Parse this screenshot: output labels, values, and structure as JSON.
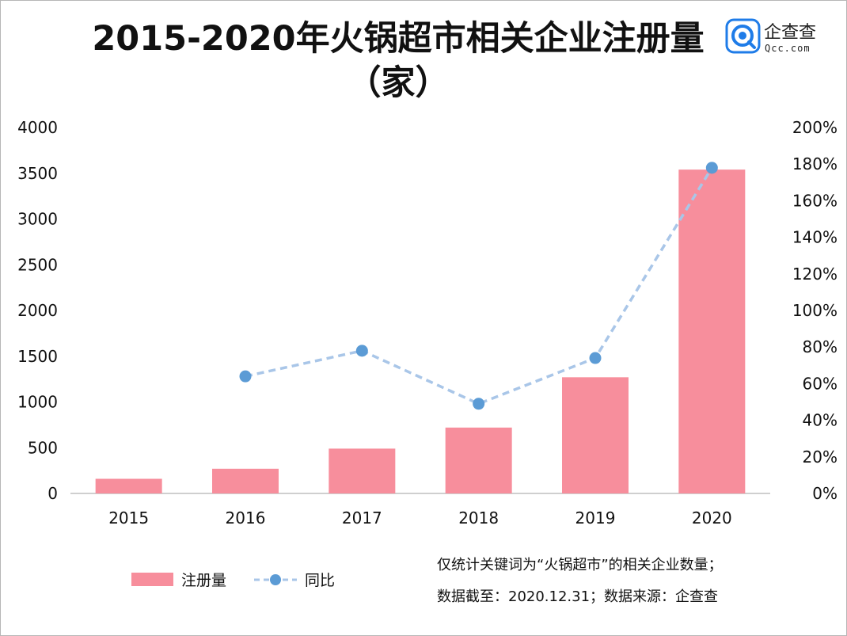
{
  "chart_data": {
    "type": "bar",
    "title": "2015-2020年火锅超市相关企业注册量",
    "title_line2": "（家）",
    "categories": [
      "2015",
      "2016",
      "2017",
      "2018",
      "2019",
      "2020"
    ],
    "series": [
      {
        "name": "注册量",
        "kind": "bar",
        "axis": "left",
        "color": "#f78e9c",
        "values": [
          160,
          270,
          490,
          720,
          1270,
          3540
        ]
      },
      {
        "name": "同比",
        "kind": "line",
        "axis": "right",
        "color": "#5b9bd5",
        "line_color": "#a9c6e8",
        "dashed": true,
        "values": [
          null,
          0.64,
          0.78,
          0.49,
          0.74,
          1.78
        ]
      }
    ],
    "y_left": {
      "min": 0,
      "max": 4000,
      "ticks": [
        "0",
        "500",
        "1000",
        "1500",
        "2000",
        "2500",
        "3000",
        "3500",
        "4000"
      ]
    },
    "y_right": {
      "min": 0,
      "max": 2,
      "ticks": [
        "0%",
        "20%",
        "40%",
        "60%",
        "80%",
        "100%",
        "120%",
        "140%",
        "160%",
        "180%",
        "200%"
      ]
    },
    "legend": {
      "placement": "bottom-left",
      "items": [
        "注册量",
        "同比"
      ]
    },
    "notes": [
      "仅统计关键词为“火锅超市”的相关企业数量；",
      "数据截至：2020.12.31；数据来源：企查查"
    ],
    "grid": false
  },
  "logo": {
    "name": "企查查",
    "domain": "Qcc.com",
    "icon": "qcc-logo-icon"
  }
}
